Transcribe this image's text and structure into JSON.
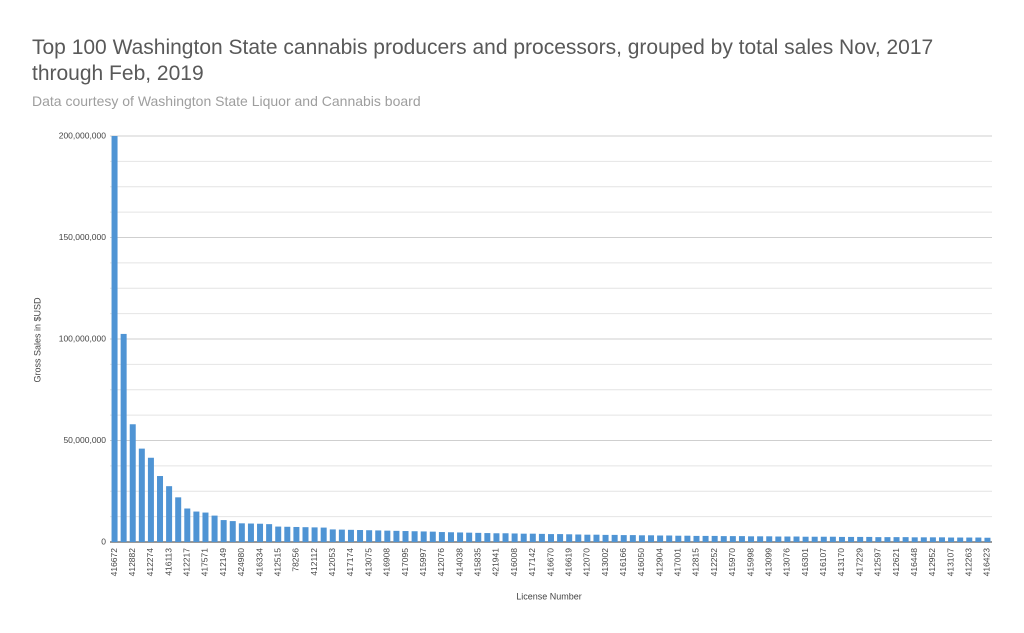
{
  "chart_data": {
    "type": "bar",
    "title_lines": [
      "Top 100 Washington State cannabis producers and processors, grouped by total sales Nov, 2017",
      "through Feb, 2019"
    ],
    "subtitle": "Data courtesy of Washington State Liquor and Cannabis board",
    "x_label": "License Number",
    "y_label": "Gross Sales in $USD",
    "color": "#4f94d4",
    "grid": true,
    "ylim": [
      0,
      200000000
    ],
    "yticks": [
      0,
      {
        "value": 50000000,
        "label": "50,000,000"
      },
      {
        "value": 100000000,
        "label": "100,000,000"
      },
      {
        "value": 150000000,
        "label": "150,000,000"
      },
      {
        "value": 200000000,
        "label": "200,000,000"
      }
    ],
    "minor_yticks": [
      12500000,
      25000000,
      37500000,
      62500000,
      75000000,
      87500000,
      112500000,
      125000000,
      137500000,
      162500000,
      175000000,
      187500000
    ],
    "categories": [
      "416672",
      null,
      "412882",
      null,
      "412274",
      null,
      "416113",
      null,
      "412217",
      null,
      "417571",
      null,
      "412149",
      null,
      "424980",
      null,
      "416334",
      null,
      "412515",
      null,
      "78256",
      null,
      "412112",
      null,
      "412053",
      null,
      "417174",
      null,
      "413075",
      null,
      "416908",
      null,
      "417095",
      null,
      "415997",
      null,
      "412076",
      null,
      "414038",
      null,
      "415835",
      null,
      "421941",
      null,
      "416008",
      null,
      "417142",
      null,
      "416670",
      null,
      "416619",
      null,
      "412070",
      null,
      "413002",
      null,
      "416166",
      null,
      "416050",
      null,
      "412904",
      null,
      "417001",
      null,
      "412815",
      null,
      "412252",
      null,
      "415970",
      null,
      "415998",
      null,
      "413099",
      null,
      "413076",
      null,
      "416301",
      null,
      "416107",
      null,
      "413170",
      null,
      "417229",
      null,
      "412597",
      null,
      "412621",
      null,
      "416448",
      null,
      "412952",
      null,
      "413107",
      null,
      "412263",
      null,
      "416423"
    ],
    "values": [
      200000000,
      102500000,
      58000000,
      46000000,
      41500000,
      32500000,
      27500000,
      22000000,
      16500000,
      15000000,
      14500000,
      13000000,
      10800000,
      10300000,
      9200000,
      9100000,
      9000000,
      8800000,
      7600000,
      7500000,
      7400000,
      7300000,
      7200000,
      7100000,
      6200000,
      6100000,
      6000000,
      5900000,
      5800000,
      5700000,
      5600000,
      5500000,
      5400000,
      5300000,
      5200000,
      5100000,
      4900000,
      4800000,
      4700000,
      4600000,
      4500000,
      4400000,
      4300000,
      4300000,
      4200000,
      4100000,
      4100000,
      4000000,
      3900000,
      3900000,
      3800000,
      3700000,
      3600000,
      3600000,
      3500000,
      3500000,
      3400000,
      3400000,
      3300000,
      3300000,
      3200000,
      3200000,
      3100000,
      3100000,
      3000000,
      3000000,
      3000000,
      2900000,
      2900000,
      2900000,
      2800000,
      2800000,
      2800000,
      2700000,
      2700000,
      2700000,
      2600000,
      2600000,
      2600000,
      2600000,
      2500000,
      2500000,
      2500000,
      2500000,
      2400000,
      2400000,
      2400000,
      2400000,
      2300000,
      2300000,
      2300000,
      2300000,
      2200000,
      2200000,
      2200000,
      2200000,
      2100000
    ]
  }
}
